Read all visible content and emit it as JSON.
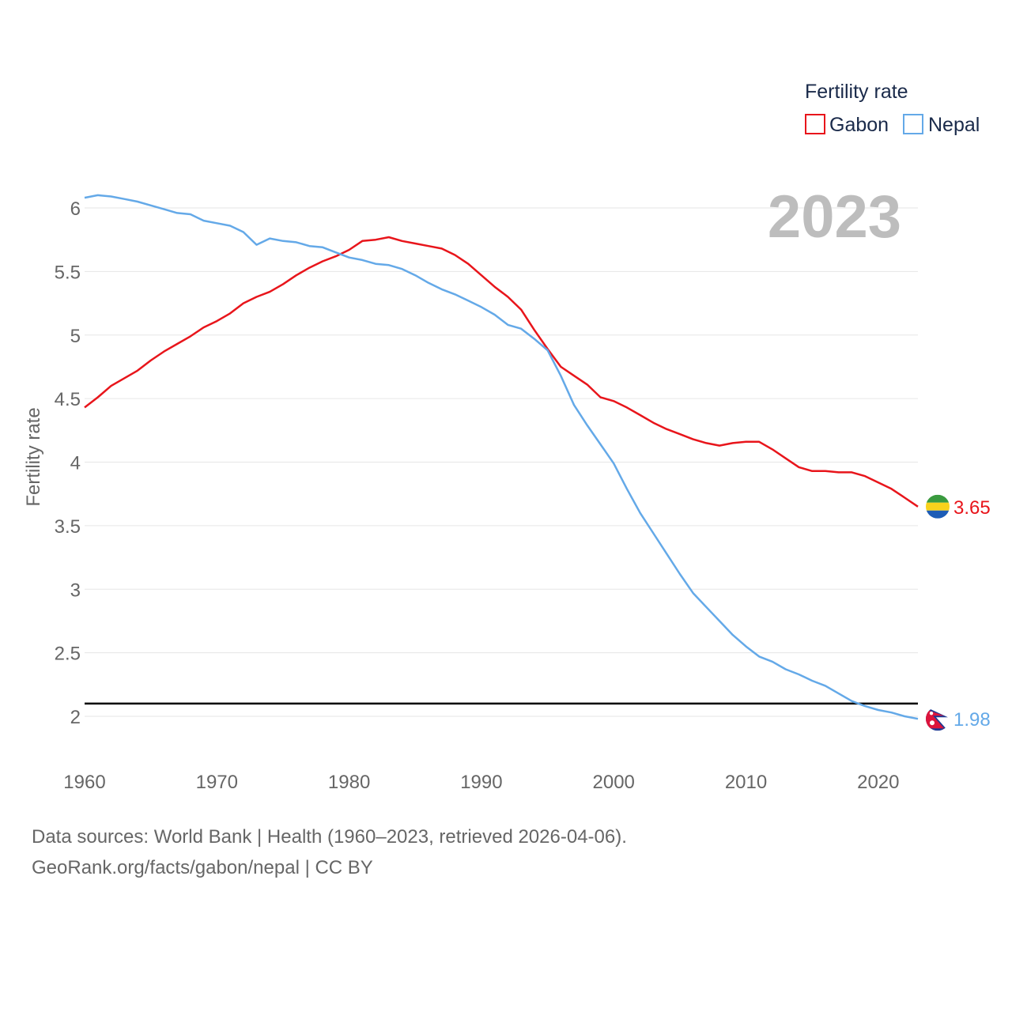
{
  "chart_data": {
    "type": "line",
    "ylabel": "Fertility rate",
    "ylim": [
      1.75,
      6.25
    ],
    "yticks": [
      2,
      2.5,
      3,
      3.5,
      4,
      4.5,
      5,
      5.5,
      6
    ],
    "xlim": [
      1960,
      2023
    ],
    "xticks": [
      1960,
      1970,
      1980,
      1990,
      2000,
      2010,
      2020
    ],
    "grid": true,
    "legend": {
      "title": "Fertility rate",
      "position": "top-right"
    },
    "year_label": "2023",
    "reference_line": 2.1,
    "x": [
      1960,
      1961,
      1962,
      1963,
      1964,
      1965,
      1966,
      1967,
      1968,
      1969,
      1970,
      1971,
      1972,
      1973,
      1974,
      1975,
      1976,
      1977,
      1978,
      1979,
      1980,
      1981,
      1982,
      1983,
      1984,
      1985,
      1986,
      1987,
      1988,
      1989,
      1990,
      1991,
      1992,
      1993,
      1994,
      1995,
      1996,
      1997,
      1998,
      1999,
      2000,
      2001,
      2002,
      2003,
      2004,
      2005,
      2006,
      2007,
      2008,
      2009,
      2010,
      2011,
      2012,
      2013,
      2014,
      2015,
      2016,
      2017,
      2018,
      2019,
      2020,
      2021,
      2022,
      2023
    ],
    "series": [
      {
        "name": "Gabon",
        "color": "#e8151b",
        "flag": "gabon-flag",
        "end_label": "3.65",
        "values": [
          4.43,
          4.51,
          4.6,
          4.66,
          4.72,
          4.8,
          4.87,
          4.93,
          4.99,
          5.06,
          5.11,
          5.17,
          5.25,
          5.3,
          5.34,
          5.4,
          5.47,
          5.53,
          5.58,
          5.62,
          5.67,
          5.74,
          5.75,
          5.77,
          5.74,
          5.72,
          5.7,
          5.68,
          5.63,
          5.56,
          5.47,
          5.38,
          5.3,
          5.2,
          5.04,
          4.89,
          4.75,
          4.68,
          4.61,
          4.51,
          4.48,
          4.43,
          4.37,
          4.31,
          4.26,
          4.22,
          4.18,
          4.15,
          4.13,
          4.15,
          4.16,
          4.16,
          4.1,
          4.03,
          3.96,
          3.93,
          3.93,
          3.92,
          3.92,
          3.89,
          3.84,
          3.79,
          3.72,
          3.65
        ]
      },
      {
        "name": "Nepal",
        "color": "#64a9e8",
        "flag": "nepal-flag",
        "end_label": "1.98",
        "values": [
          6.08,
          6.1,
          6.09,
          6.07,
          6.05,
          6.02,
          5.99,
          5.96,
          5.95,
          5.9,
          5.88,
          5.86,
          5.81,
          5.71,
          5.76,
          5.74,
          5.73,
          5.7,
          5.69,
          5.65,
          5.61,
          5.59,
          5.56,
          5.55,
          5.52,
          5.47,
          5.41,
          5.36,
          5.32,
          5.27,
          5.22,
          5.16,
          5.08,
          5.05,
          4.97,
          4.88,
          4.68,
          4.45,
          4.29,
          4.14,
          3.99,
          3.79,
          3.6,
          3.44,
          3.28,
          3.12,
          2.97,
          2.86,
          2.75,
          2.64,
          2.55,
          2.47,
          2.43,
          2.37,
          2.33,
          2.28,
          2.24,
          2.18,
          2.12,
          2.08,
          2.05,
          2.03,
          2.0,
          1.98
        ]
      }
    ]
  },
  "footer": {
    "line1": "Data sources: World Bank | Health (1960–2023, retrieved 2026-04-06).",
    "line2": "GeoRank.org/facts/gabon/nepal | CC BY"
  }
}
